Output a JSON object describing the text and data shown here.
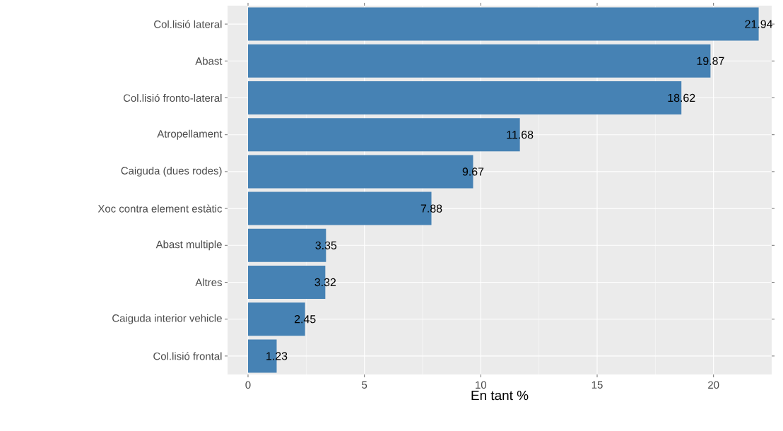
{
  "chart_data": {
    "type": "bar",
    "orientation": "horizontal",
    "xlabel": "En tant %",
    "categories": [
      "Col.lisió lateral",
      "Abast",
      "Col.lisió fronto-lateral",
      "Atropellament",
      "Caiguda (dues rodes)",
      "Xoc contra element estàtic",
      "Abast multiple",
      "Altres",
      "Caiguda interior vehicle",
      "Col.lisió frontal"
    ],
    "values": [
      21.94,
      19.87,
      18.62,
      11.68,
      9.67,
      7.88,
      3.35,
      3.32,
      2.45,
      1.23
    ],
    "color": "#4682b4",
    "xlim": [
      -0.88,
      22.5
    ],
    "xticks": [
      0,
      5,
      10,
      15,
      20
    ],
    "grid": true,
    "data_labels": true
  }
}
